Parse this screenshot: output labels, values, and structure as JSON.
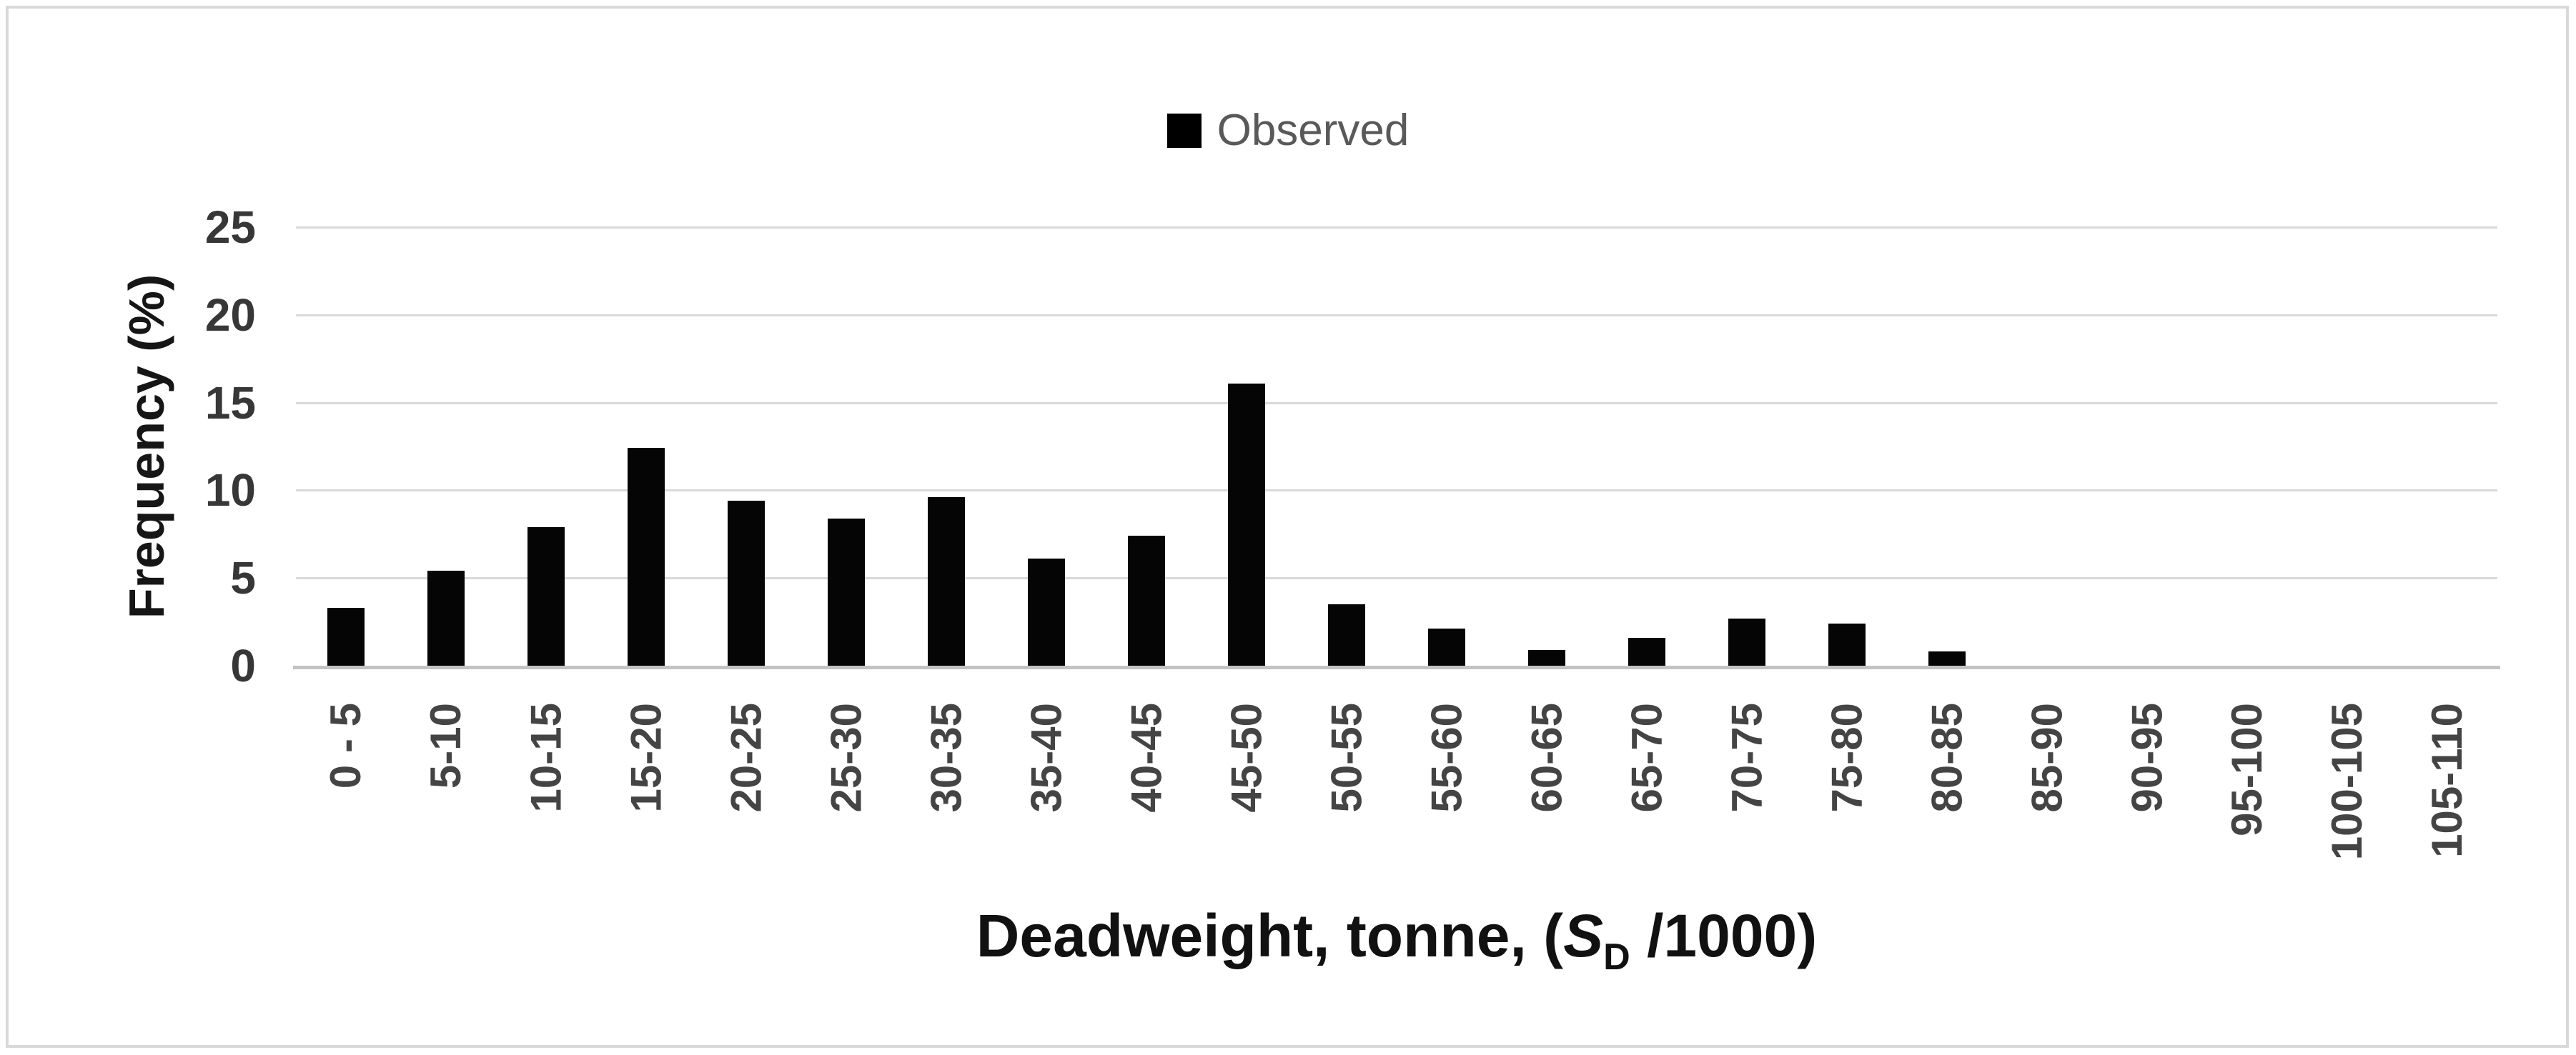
{
  "chart_data": {
    "type": "bar",
    "legend_label": "Observed",
    "legend_position": "top-center",
    "categories": [
      "0 - 5",
      "5-10",
      "10-15",
      "15-20",
      "20-25",
      "25-30",
      "30-35",
      "35-40",
      "40-45",
      "45-50",
      "50-55",
      "55-60",
      "60-65",
      "65-70",
      "70-75",
      "75-80",
      "80-85",
      "85-90",
      "90-95",
      "95-100",
      "100-105",
      "105-110"
    ],
    "values": [
      3.3,
      5.4,
      7.9,
      12.4,
      9.4,
      8.4,
      9.6,
      6.1,
      7.4,
      16.1,
      3.5,
      2.1,
      0.9,
      1.6,
      2.7,
      2.4,
      0.8,
      0,
      0,
      0,
      0,
      0
    ],
    "ylabel": "Frequency (%)",
    "xlabel_parts": {
      "prefix": "Deadweight, tonne, (",
      "symbol": "S",
      "subscript": "D",
      "suffix": " /1000)"
    },
    "ylim": [
      0,
      25
    ],
    "yticks": [
      0,
      5,
      10,
      15,
      20,
      25
    ],
    "grid": true,
    "bar_color": "#050505",
    "gridline_color": "#d9d9d9",
    "axisline_color": "#c3c3c3",
    "legend_text_color": "#595959",
    "frame_border_color": "#d9d9d9"
  }
}
